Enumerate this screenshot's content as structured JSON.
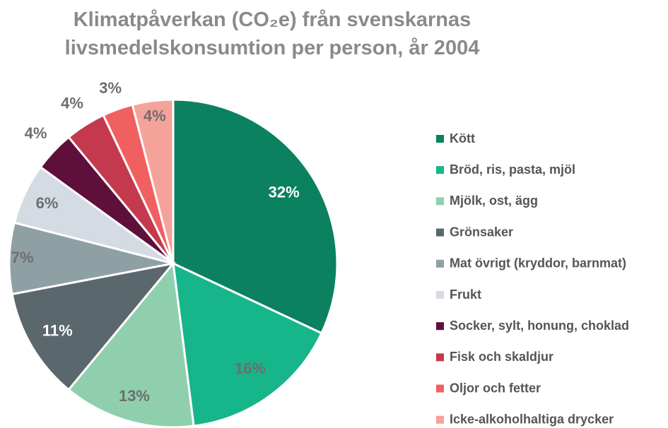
{
  "chart_data": {
    "type": "pie",
    "title": "Klimatpåverkan (CO₂e) från svenskarnas livsmedelskonsumtion per person, år 2004",
    "categories": [
      "Kött",
      "Bröd, ris, pasta, mjöl",
      "Mjölk, ost, ägg",
      "Grönsaker",
      "Mat övrigt (kryddor, barnmat)",
      "Frukt",
      "Socker, sylt, honung, choklad",
      "Fisk och skaldjur",
      "Oljor och fetter",
      "Icke-alkoholhaltiga drycker"
    ],
    "values": [
      32,
      16,
      13,
      11,
      7,
      6,
      4,
      4,
      3,
      4
    ],
    "value_labels": [
      "32%",
      "16%",
      "13%",
      "11%",
      "7%",
      "6%",
      "4%",
      "4%",
      "3%",
      "4%"
    ],
    "colors": [
      "#0b8160",
      "#17b58a",
      "#8fcfae",
      "#5a676c",
      "#8fa0a5",
      "#d5dbe3",
      "#5e0f3a",
      "#c5394f",
      "#f06060",
      "#f5a39a"
    ],
    "legend": "right"
  }
}
